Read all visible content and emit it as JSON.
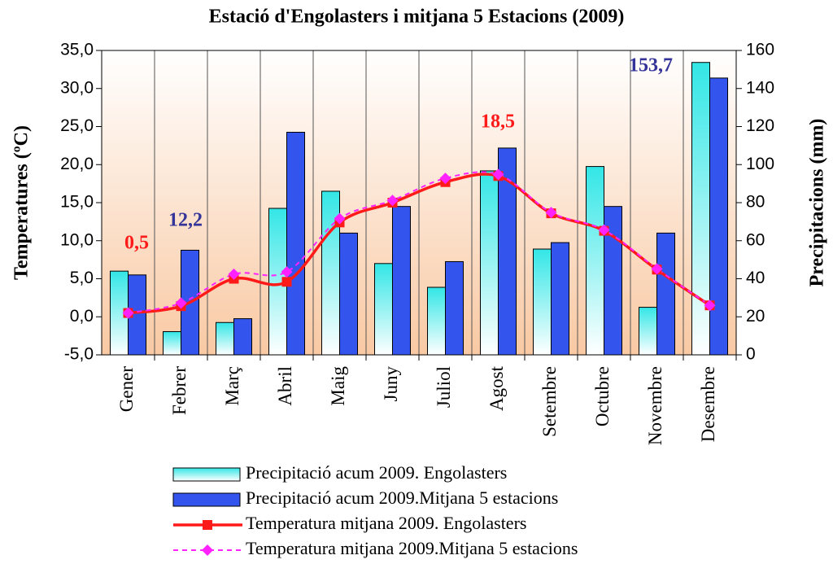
{
  "chart_data": {
    "type": "bar",
    "title": "Estació d'Engolasters i mitjana 5 Estacions (2009)",
    "y_label": "Temperatures (ºC)",
    "y2_label": "Precipitacions (mm)",
    "categories": [
      "Gener",
      "Febrer",
      "Març",
      "Abril",
      "Maig",
      "Juny",
      "Juliol",
      "Agost",
      "Setembre",
      "Octubre",
      "Novembre",
      "Desembre"
    ],
    "series": [
      {
        "name": "Precipitació acum 2009. Engolasters",
        "type": "bar",
        "axis": "y2",
        "color": "#33e6e6",
        "values": [
          44,
          12.2,
          17,
          77,
          86,
          48,
          35.5,
          96.7,
          55.6,
          99,
          25,
          153.7
        ]
      },
      {
        "name": "Precipitació acum 2009.Mitjana 5 estacions",
        "type": "bar",
        "axis": "y2",
        "color": "#3355ee",
        "values": [
          42,
          55,
          19,
          117,
          64,
          78,
          49,
          108.7,
          59,
          78,
          64,
          145.5
        ]
      },
      {
        "name": "Temperatura mitjana 2009. Engolasters",
        "type": "line",
        "color": "#ff1a1a",
        "marker": "square",
        "dashed": false,
        "values": [
          0.5,
          1.4,
          5.0,
          4.6,
          12.4,
          15.0,
          17.7,
          18.5,
          13.6,
          11.3,
          6.2,
          1.5
        ]
      },
      {
        "name": "Temperatura mitjana 2009.Mitjana 5 estacions",
        "type": "line",
        "color": "#ff22ff",
        "marker": "diamond",
        "dashed": true,
        "values": [
          0.5,
          1.8,
          5.6,
          5.9,
          12.9,
          15.3,
          18.2,
          18.7,
          13.7,
          11.4,
          6.3,
          1.5
        ]
      }
    ],
    "annotations": [
      {
        "text": "0,5",
        "color": "#ff1a1a"
      },
      {
        "text": "12,2",
        "color": "#333399"
      },
      {
        "text": "18,5",
        "color": "#ff1a1a"
      },
      {
        "text": "153,7",
        "color": "#333399"
      }
    ],
    "ylim": [
      -5,
      35
    ],
    "yticks": [
      {
        "value": -5,
        "label": "-5,0"
      },
      {
        "value": 0,
        "label": "0,0"
      },
      {
        "value": 5,
        "label": "5,0"
      },
      {
        "value": 10,
        "label": "10,0"
      },
      {
        "value": 15,
        "label": "15,0"
      },
      {
        "value": 20,
        "label": "20,0"
      },
      {
        "value": 25,
        "label": "25,0"
      },
      {
        "value": 30,
        "label": "30,0"
      },
      {
        "value": 35,
        "label": "35,0"
      }
    ],
    "y2lim": [
      0,
      160
    ],
    "y2ticks": [
      0,
      20,
      40,
      60,
      80,
      100,
      120,
      140,
      160
    ]
  }
}
